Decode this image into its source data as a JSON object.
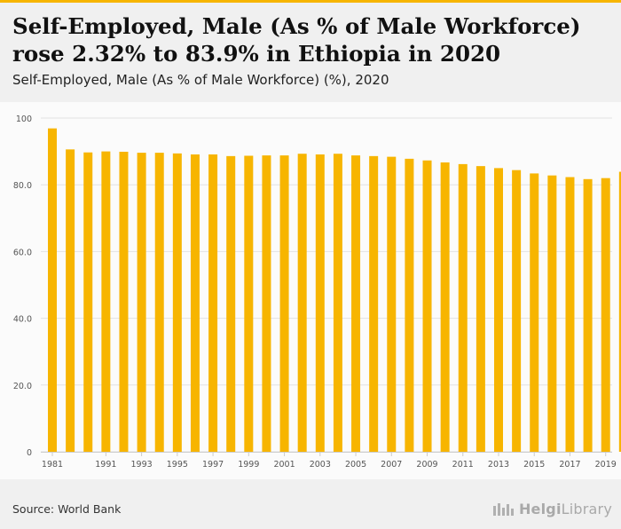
{
  "header": {
    "title": "Self-Employed, Male (As % of Male Workforce) rose 2.32% to 83.9% in Ethiopia in 2020",
    "subtitle": "Self-Employed, Male (As % of Male Workforce) (%), 2020"
  },
  "footer": {
    "source": "Source: World Bank",
    "brand_bold": "Helgi",
    "brand_light": "Library"
  },
  "colors": {
    "bar": "#f7b500",
    "accent": "#f7b500",
    "grid": "#e2e2e2"
  },
  "icons": {
    "brand": "helgi-library-logo-icon"
  },
  "chart_data": {
    "type": "bar",
    "title": "Self-Employed, Male (As % of Male Workforce) (%), 2020",
    "xlabel": "",
    "ylabel": "",
    "ylim": [
      0,
      100
    ],
    "grid": true,
    "yticks": [
      0,
      20,
      40,
      60,
      80,
      100
    ],
    "ytick_labels": [
      "0",
      "20.0",
      "40.0",
      "60.0",
      "80.0",
      "100"
    ],
    "categories": [
      "1981",
      "1982",
      "1990",
      "1991",
      "1992",
      "1993",
      "1994",
      "1995",
      "1996",
      "1997",
      "1998",
      "1999",
      "2000",
      "2001",
      "2002",
      "2003",
      "2004",
      "2005",
      "2006",
      "2007",
      "2008",
      "2009",
      "2010",
      "2011",
      "2012",
      "2013",
      "2014",
      "2015",
      "2016",
      "2017",
      "2018",
      "2019",
      "2020"
    ],
    "xtick_labels": [
      "1981",
      "1991",
      "1993",
      "1995",
      "1997",
      "1999",
      "2001",
      "2003",
      "2005",
      "2007",
      "2009",
      "2011",
      "2013",
      "2015",
      "2017",
      "2019"
    ],
    "values": [
      96.9,
      90.6,
      89.7,
      90.0,
      89.9,
      89.6,
      89.6,
      89.4,
      89.1,
      89.1,
      88.6,
      88.7,
      88.8,
      88.8,
      89.3,
      89.1,
      89.3,
      88.8,
      88.6,
      88.4,
      87.8,
      87.3,
      86.7,
      86.2,
      85.6,
      85.0,
      84.4,
      83.4,
      82.8,
      82.3,
      81.7,
      82.0,
      83.9
    ]
  }
}
